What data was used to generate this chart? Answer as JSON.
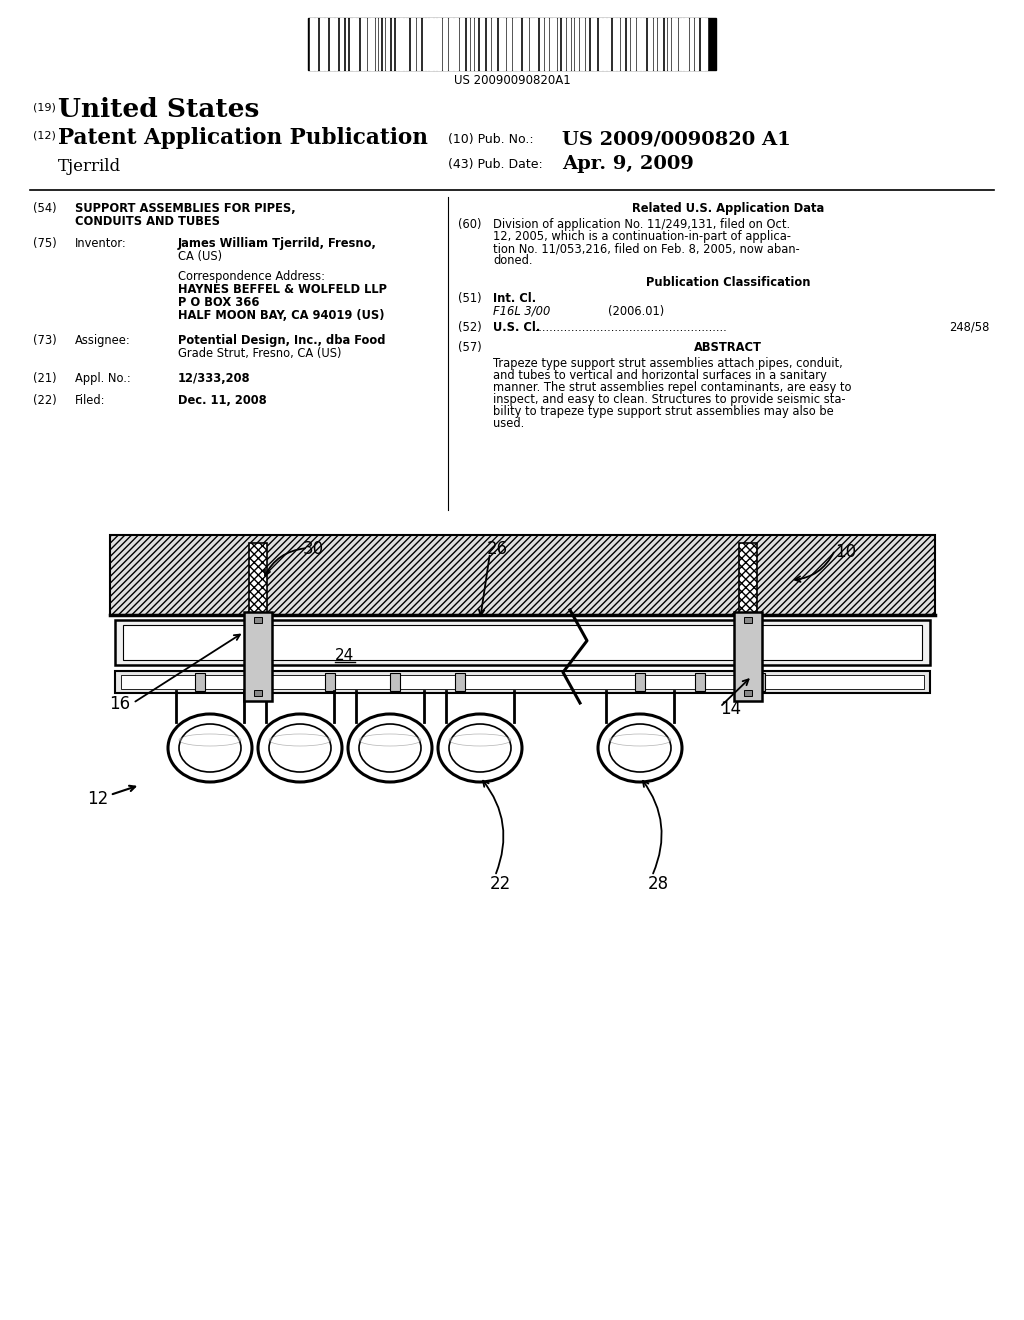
{
  "background_color": "#ffffff",
  "barcode_text": "US 20090090820A1",
  "header": {
    "country_label": "(19)",
    "country": "United States",
    "type_label": "(12)",
    "type": "Patent Application Publication",
    "pub_no_label": "(10) Pub. No.:",
    "pub_no": "US 2009/0090820 A1",
    "date_label": "(43) Pub. Date:",
    "date": "Apr. 9, 2009",
    "inventor_name": "Tjerrild"
  },
  "fields": {
    "title_num": "(54)",
    "title_line1": "SUPPORT ASSEMBLIES FOR PIPES,",
    "title_line2": "CONDUITS AND TUBES",
    "inventor_num": "(75)",
    "inventor_label": "Inventor:",
    "inventor_line1": "James William Tjerrild, Fresno,",
    "inventor_line2": "CA (US)",
    "corr_label": "Correspondence Address:",
    "corr_line1": "HAYNES BEFFEL & WOLFELD LLP",
    "corr_line2": "P O BOX 366",
    "corr_line3": "HALF MOON BAY, CA 94019 (US)",
    "assignee_num": "(73)",
    "assignee_label": "Assignee:",
    "assignee_line1": "Potential Design, Inc., dba Food",
    "assignee_line2": "Grade Strut, Fresno, CA (US)",
    "appl_num": "(21)",
    "appl_label": "Appl. No.:",
    "appl": "12/333,208",
    "filed_num": "(22)",
    "filed_label": "Filed:",
    "filed": "Dec. 11, 2008"
  },
  "right_fields": {
    "related_header": "Related U.S. Application Data",
    "related_num": "(60)",
    "related_line1": "Division of application No. 11/249,131, filed on Oct.",
    "related_line2": "12, 2005, which is a continuation-in-part of applica-",
    "related_line3": "tion No. 11/053,216, filed on Feb. 8, 2005, now aban-",
    "related_line4": "doned.",
    "pub_class_header": "Publication Classification",
    "int_cl_num": "(51)",
    "int_cl_label": "Int. Cl.",
    "int_cl_code": "F16L 3/00",
    "int_cl_year": "(2006.01)",
    "us_cl_num": "(52)",
    "us_cl_label": "U.S. Cl.",
    "us_cl_dots": " .....................................................",
    "us_cl_val": "248/58",
    "abstract_num": "(57)",
    "abstract_header": "ABSTRACT",
    "abstract_line1": "Trapeze type support strut assemblies attach pipes, conduit,",
    "abstract_line2": "and tubes to vertical and horizontal surfaces in a sanitary",
    "abstract_line3": "manner. The strut assemblies repel contaminants, are easy to",
    "abstract_line4": "inspect, and easy to clean. Structures to provide seismic sta-",
    "abstract_line5": "bility to trapeze type support strut assemblies may also be",
    "abstract_line6": "used."
  }
}
